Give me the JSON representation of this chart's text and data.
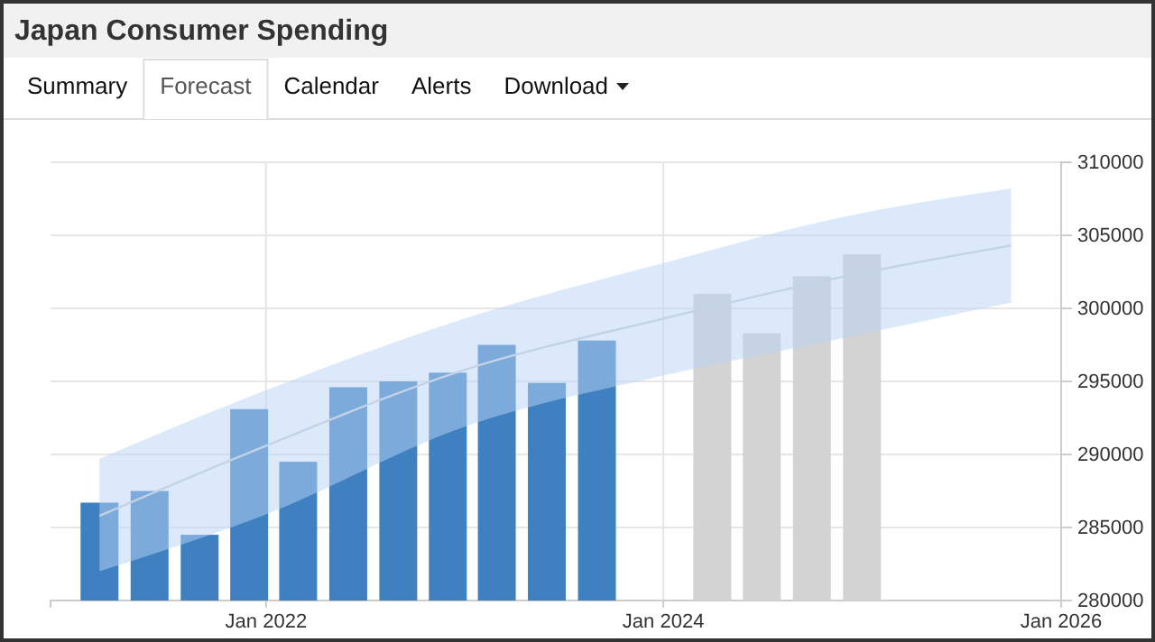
{
  "chart_data": {
    "type": "bar",
    "title": "Japan Consumer Spending",
    "annotations": [
      "Summary",
      "Forecast",
      "Calendar",
      "Alerts",
      "Download"
    ],
    "xlim": [
      "2020-12",
      "2026-01"
    ],
    "xticks": [
      {
        "value": "2022-01",
        "label": "Jan 2022"
      },
      {
        "value": "2024-01",
        "label": "Jan 2024"
      },
      {
        "value": "2026-01",
        "label": "Jan 2026"
      }
    ],
    "ylim": [
      280000,
      310000
    ],
    "yticks": [
      280000,
      285000,
      290000,
      295000,
      300000,
      305000,
      310000
    ],
    "grid": true,
    "series": [
      {
        "color": "#3f80c0",
        "x": [
          "2021-03",
          "2021-06",
          "2021-09",
          "2021-12",
          "2022-03",
          "2022-06",
          "2022-09",
          "2022-12",
          "2023-03",
          "2023-06",
          "2023-09"
        ],
        "values": [
          286700,
          287500,
          284500,
          293100,
          289500,
          294600,
          295000,
          295600,
          297500,
          294900,
          297800
        ]
      },
      {
        "color": "#d3d3d3",
        "x": [
          "2024-03-31",
          "2024-06-30",
          "2024-09-30",
          "2024-12-31"
        ],
        "values": [
          301000,
          298300,
          302200,
          303700
        ]
      },
      {
        "type": "line",
        "color": "#c3d3e6",
        "x": [
          "2021-03",
          "2022-01",
          "2023-01",
          "2024-01",
          "2024-12",
          "2025-10"
        ],
        "values": [
          285800,
          290600,
          295800,
          299300,
          302200,
          304300
        ],
        "lower": [
          282000,
          285900,
          291900,
          295400,
          298000,
          300400
        ],
        "upper": [
          289700,
          294400,
          299300,
          303100,
          306300,
          308200
        ]
      }
    ]
  }
}
